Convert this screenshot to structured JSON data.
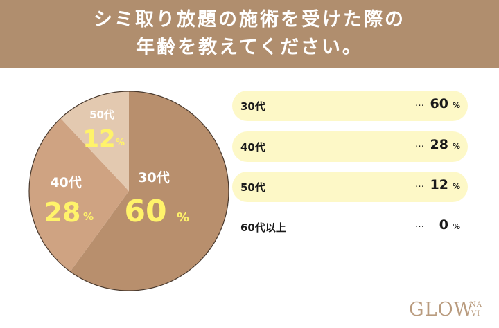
{
  "header": {
    "line1": "シミ取り放題の施術を受けた際の",
    "line2": "年齢を教えてください。"
  },
  "chart_data": {
    "type": "pie",
    "title": "シミ取り放題の施術を受けた際の年齢を教えてください。",
    "categories": [
      "30代",
      "40代",
      "50代",
      "60代以上"
    ],
    "values": [
      60,
      28,
      12,
      0
    ],
    "unit": "%",
    "colors": [
      "#b88f6d",
      "#cfa382",
      "#e3c9b0",
      "#f2e6d9"
    ],
    "legend_placement": "right"
  },
  "pie_labels": [
    {
      "age": "30代",
      "value": "60",
      "pct": "%"
    },
    {
      "age": "40代",
      "value": "28",
      "pct": "%"
    },
    {
      "age": "50代",
      "value": "12",
      "pct": "%"
    }
  ],
  "legend": {
    "rows": [
      {
        "label": "30代",
        "dots": "…",
        "value": "60",
        "pct": "%"
      },
      {
        "label": "40代",
        "dots": "…",
        "value": "28",
        "pct": "%"
      },
      {
        "label": "50代",
        "dots": "…",
        "value": "12",
        "pct": "%"
      },
      {
        "label": "60代以上",
        "dots": "…",
        "value": "0",
        "pct": "%"
      }
    ],
    "row_fill_color": "#fdf8c7"
  },
  "logo": {
    "main": "GLOW",
    "sub_top": "NA",
    "sub_bottom": "VI",
    "color": "#b99b7e"
  },
  "colors": {
    "header_bg": "#b08e6e",
    "label_highlight": "#fff36a"
  }
}
